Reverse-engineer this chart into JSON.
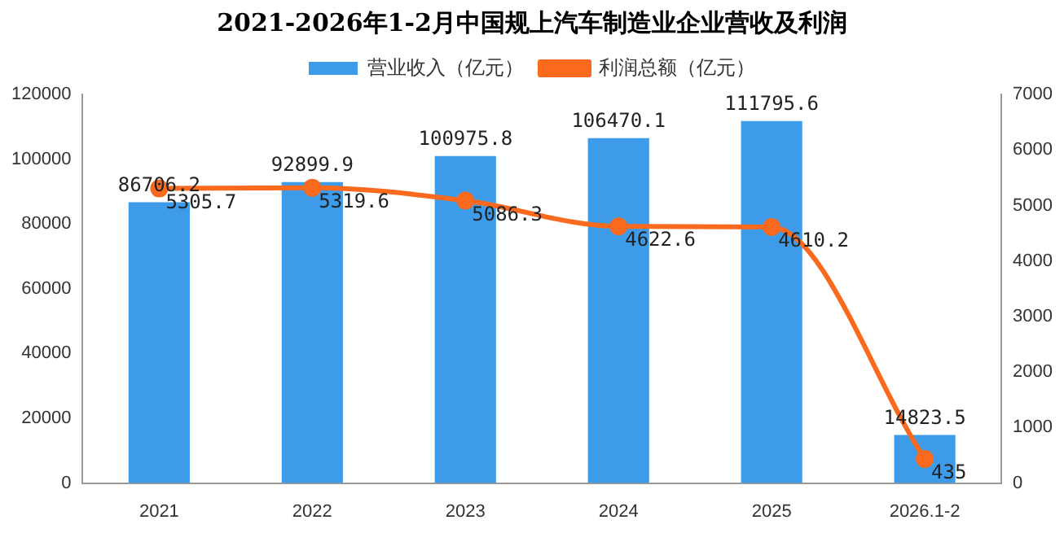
{
  "chart_data": {
    "type": "bar",
    "title": "2021-2026年1-2月中国规上汽车制造业企业营收及利润",
    "categories": [
      "2021",
      "2022",
      "2023",
      "2024",
      "2025",
      "2026.1-2"
    ],
    "series": [
      {
        "name": "营业收入（亿元）",
        "color": "#3d9be9",
        "values": [
          86706.2,
          92899.9,
          100975.8,
          106470.1,
          111795.6,
          14823.5
        ]
      },
      {
        "name": "利润总额（亿元）",
        "type": "line",
        "axis": "y2",
        "color": "#fa6a1e",
        "values": [
          5305.7,
          5319.6,
          5086.3,
          4622.6,
          4610.2,
          435
        ]
      }
    ],
    "ylim": [
      0,
      120000
    ],
    "yticks": [
      0,
      20000,
      40000,
      60000,
      80000,
      100000,
      120000
    ],
    "y2lim": [
      0,
      7000
    ],
    "y2ticks": [
      0,
      1000,
      2000,
      3000,
      4000,
      5000,
      6000,
      7000
    ],
    "data_labels": true,
    "legend": "top",
    "grid": false,
    "marker": "circle"
  }
}
